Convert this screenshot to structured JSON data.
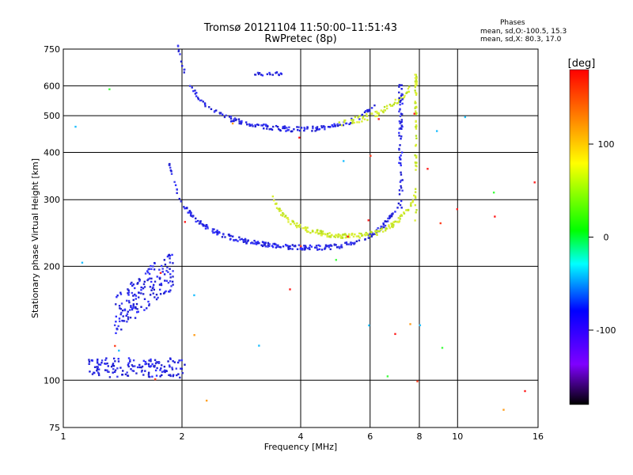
{
  "chart_data": {
    "type": "scatter",
    "title": "Tromsø 20121104 11:50:00–11:51:43",
    "subtitle": "RwPretec (8p)",
    "xlabel": "Frequency [MHz]",
    "ylabel": "Stationary phase Virtual Height [km]",
    "xscale": "log",
    "yscale": "log",
    "xlim": [
      1,
      16
    ],
    "ylim": [
      75,
      750
    ],
    "x_ticks": [
      1,
      2,
      4,
      6,
      8,
      10,
      16
    ],
    "y_ticks": [
      75,
      100,
      200,
      300,
      400,
      500,
      600,
      750
    ],
    "grid": true,
    "legend": {
      "title": "Phases",
      "o_mode": "mean, sd,O:-100.5, 15.3",
      "x_mode": "mean, sd,X: 80.3, 17.0"
    },
    "colorbar": {
      "label": "[deg]",
      "range": [
        -180,
        180
      ],
      "ticks": [
        100,
        0,
        -100
      ],
      "colors": [
        "#000000",
        "#7f00ff",
        "#0000ff",
        "#00ffff",
        "#00ff00",
        "#ffff00",
        "#ff7f00",
        "#ff0000"
      ]
    },
    "series": [
      {
        "name": "O",
        "phase_mean": -100.5,
        "color": "#2a2ae6"
      },
      {
        "name": "X",
        "phase_mean": 80.3,
        "color": "#c8e628"
      }
    ]
  }
}
